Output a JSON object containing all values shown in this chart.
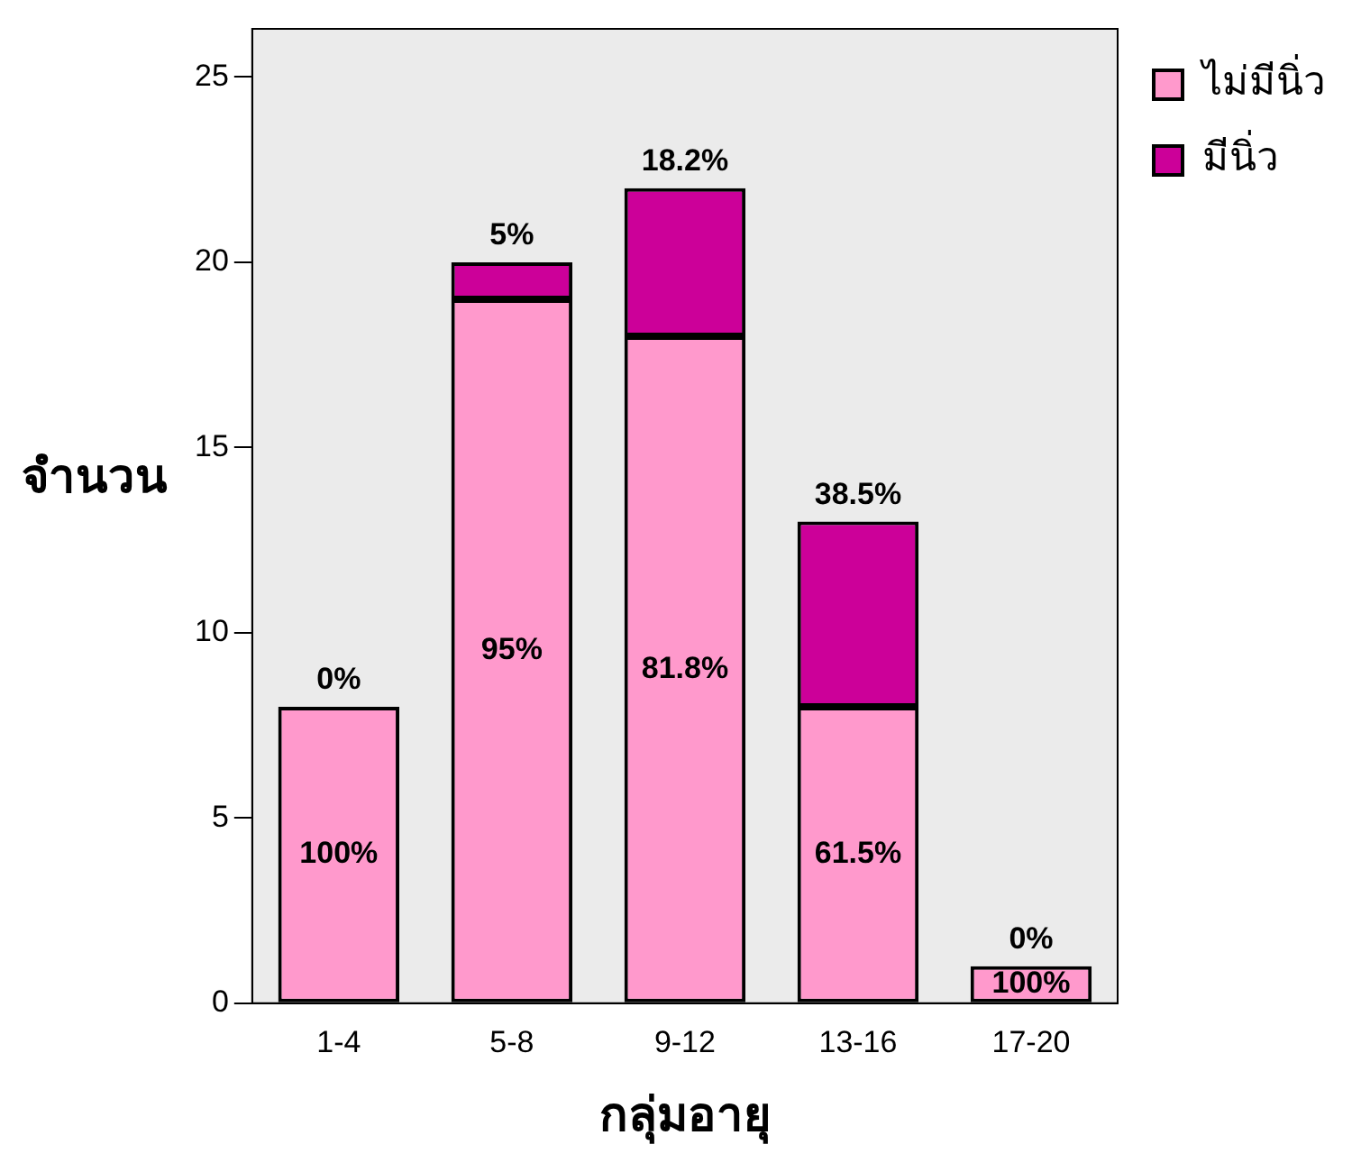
{
  "chart_data": {
    "type": "bar",
    "stacked": true,
    "xlabel": "กลุ่มอายุ",
    "ylabel": "จำนวน",
    "categories": [
      "1-4",
      "5-8",
      "9-12",
      "13-16",
      "17-20"
    ],
    "series": [
      {
        "name": "ไม่มีนิ่ว",
        "color": "#ff99cc",
        "values": [
          8,
          19,
          18,
          8,
          1
        ]
      },
      {
        "name": "มีนิ่ว",
        "color": "#cc0099",
        "values": [
          0,
          1,
          4,
          5,
          0
        ]
      }
    ],
    "annotations": [
      "100%",
      "95%",
      "81.8%",
      "61.5%",
      "100%",
      "0%",
      "5%",
      "18.2%",
      "38.5%",
      "0%"
    ],
    "ylim": [
      0,
      26.3
    ],
    "yticks": [
      0,
      5,
      10,
      15,
      20,
      25
    ],
    "grid": false,
    "legend": "top right"
  }
}
